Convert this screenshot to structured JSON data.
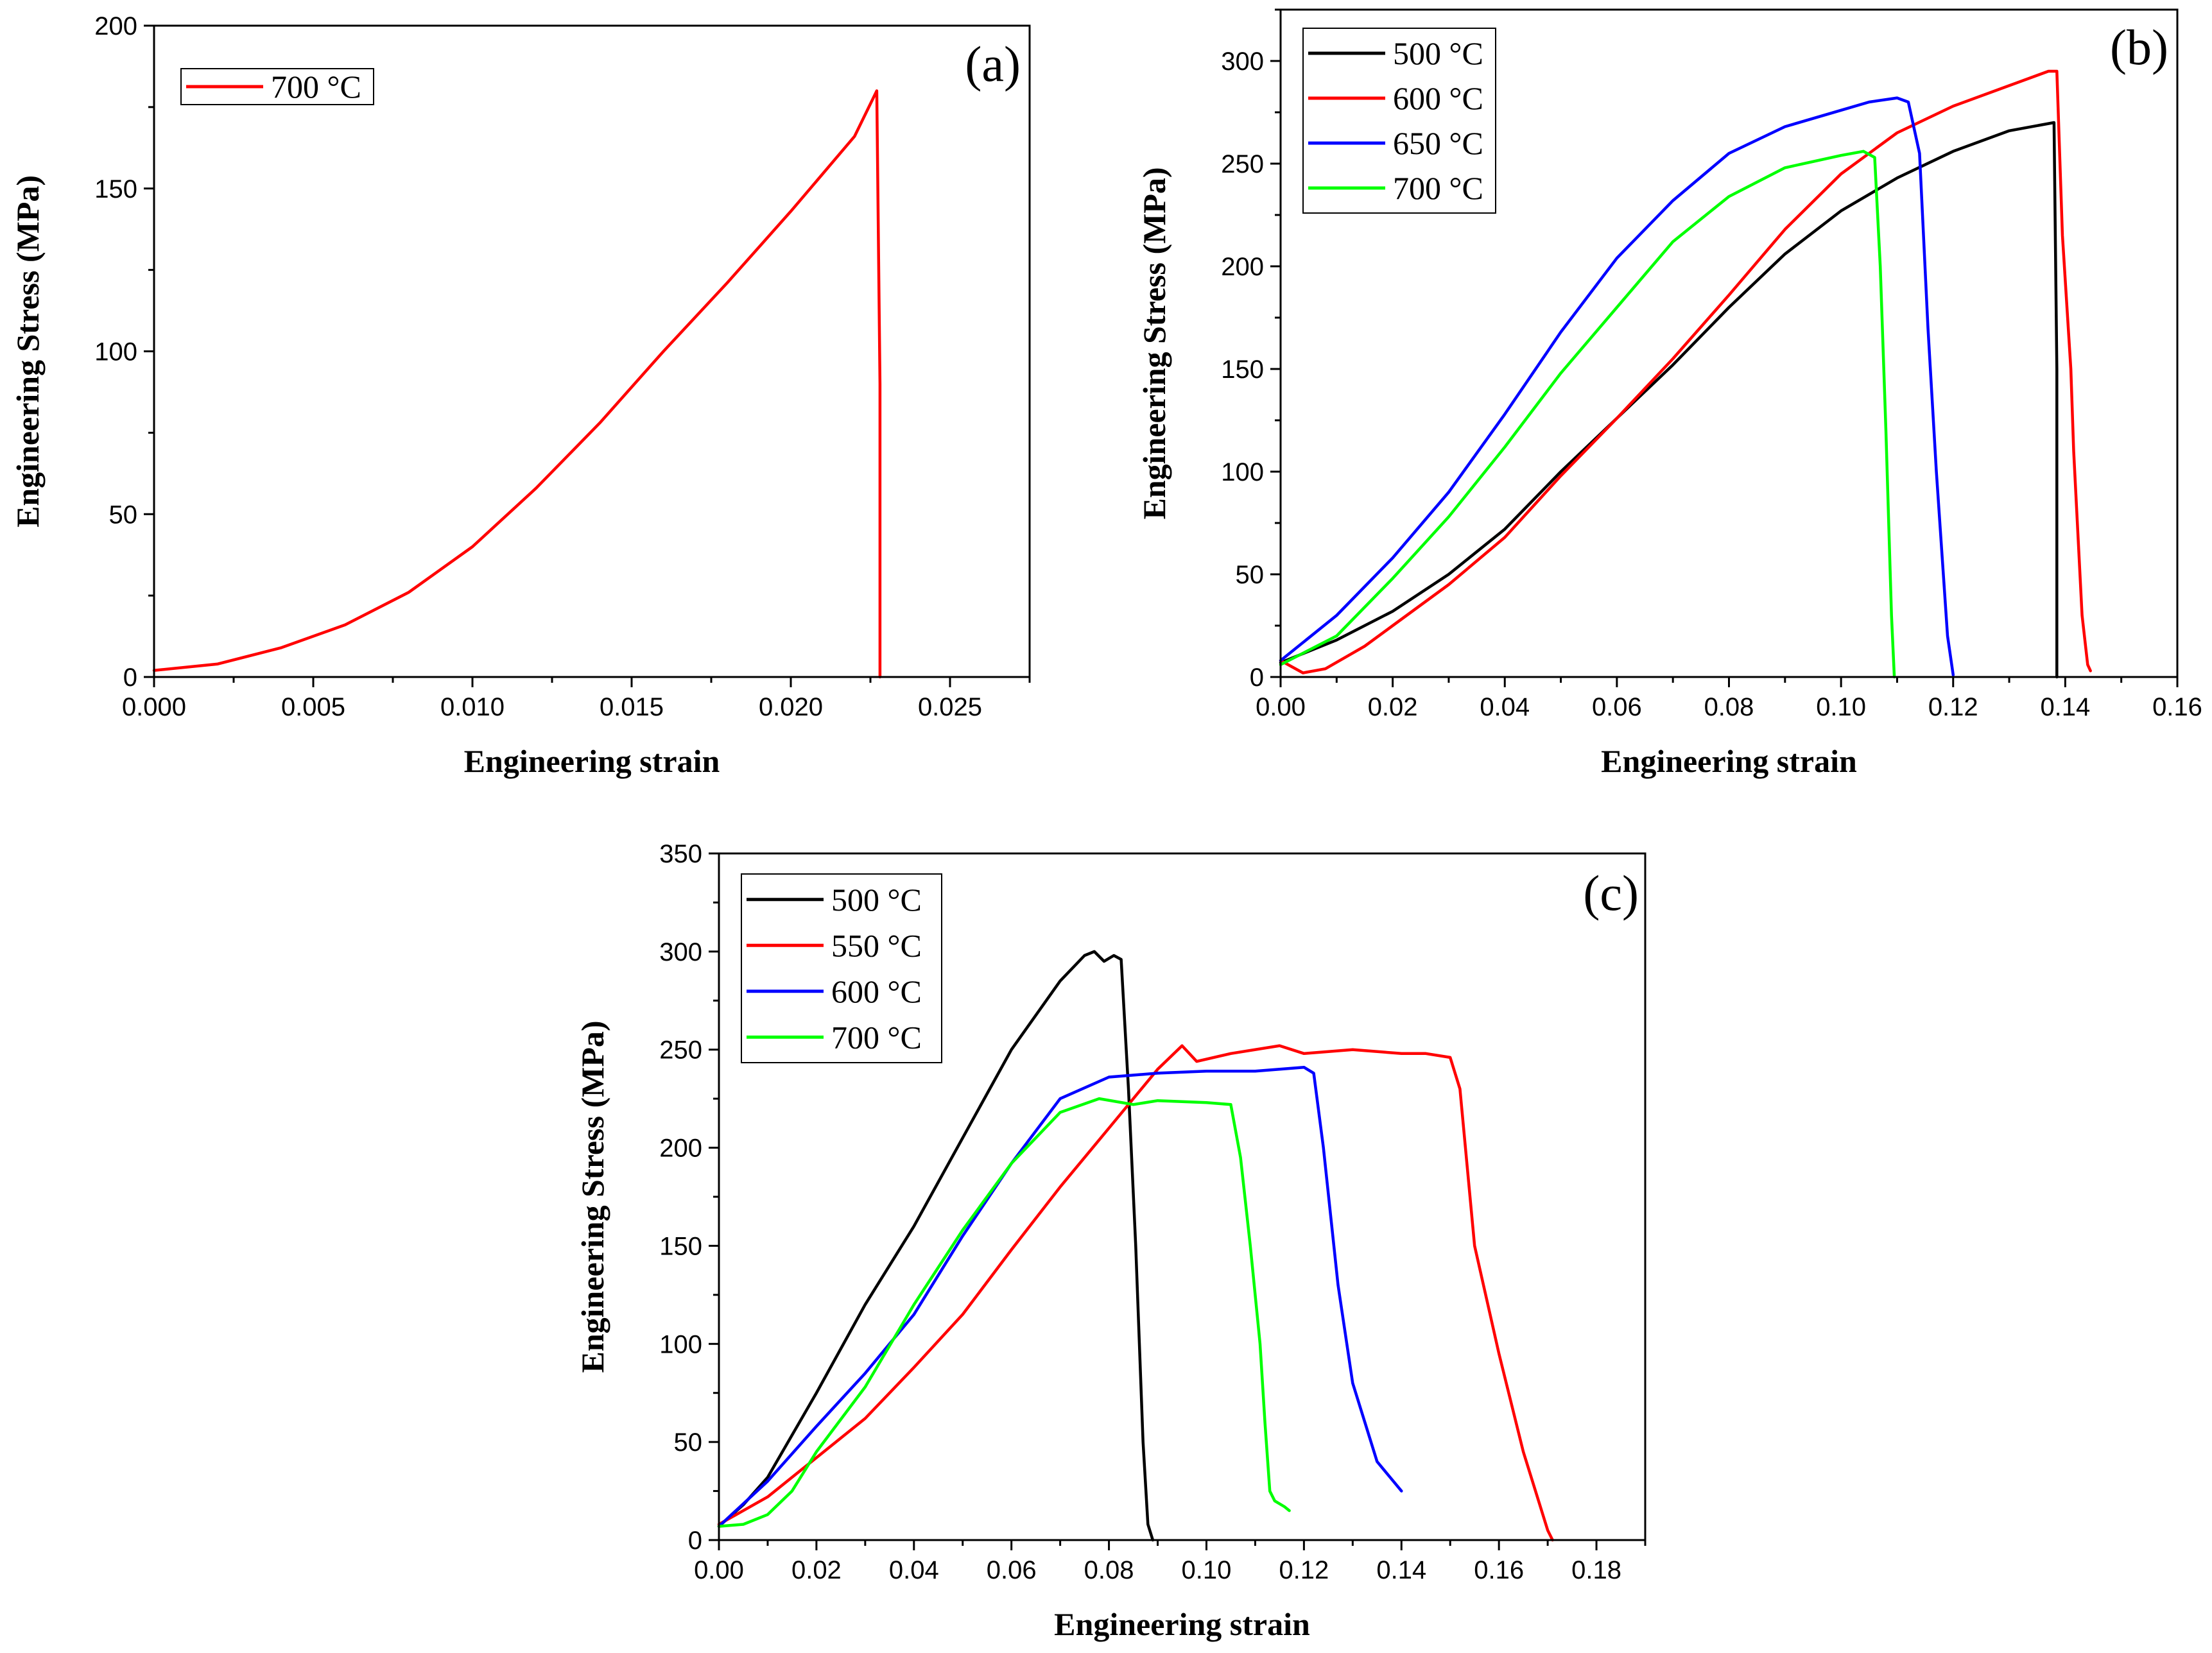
{
  "chart_data": [
    {
      "panel": "(a)",
      "type": "line",
      "xlabel": "Engineering strain",
      "ylabel": "Engineering Stress (MPa)",
      "xlim": [
        0,
        0.0275
      ],
      "ylim": [
        0,
        200
      ],
      "xticks": [
        "0.000",
        "0.005",
        "0.010",
        "0.015",
        "0.020",
        "0.025"
      ],
      "yticks": [
        "0",
        "50",
        "100",
        "150",
        "200"
      ],
      "legend_position": "top-left",
      "series": [
        {
          "name": "700 °C",
          "color": "#ff0000",
          "x": [
            0,
            0.002,
            0.004,
            0.006,
            0.008,
            0.01,
            0.012,
            0.014,
            0.016,
            0.018,
            0.02,
            0.022,
            0.0227,
            0.0228,
            0.0228
          ],
          "y": [
            2,
            4,
            9,
            16,
            26,
            40,
            58,
            78,
            100,
            121,
            143,
            166,
            180,
            90,
            0
          ]
        }
      ]
    },
    {
      "panel": "(b)",
      "type": "line",
      "xlabel": "Engineering strain",
      "ylabel": "Engineering Stress (MPa)",
      "xlim": [
        0,
        0.16
      ],
      "ylim": [
        0,
        325
      ],
      "xticks": [
        "0.00",
        "0.02",
        "0.04",
        "0.06",
        "0.08",
        "0.10",
        "0.12",
        "0.14",
        "0.16"
      ],
      "yticks": [
        "0",
        "50",
        "100",
        "150",
        "200",
        "250",
        "300"
      ],
      "legend_position": "top-left",
      "series": [
        {
          "name": "500 °C",
          "color": "#000000",
          "x": [
            0,
            0.01,
            0.02,
            0.03,
            0.04,
            0.05,
            0.06,
            0.07,
            0.08,
            0.09,
            0.1,
            0.11,
            0.12,
            0.13,
            0.138,
            0.1385,
            0.1385
          ],
          "y": [
            7,
            18,
            32,
            50,
            72,
            100,
            126,
            152,
            180,
            206,
            227,
            243,
            256,
            266,
            270,
            150,
            0
          ]
        },
        {
          "name": "600 °C",
          "color": "#ff0000",
          "x": [
            0,
            0.004,
            0.008,
            0.015,
            0.02,
            0.03,
            0.04,
            0.05,
            0.06,
            0.07,
            0.08,
            0.09,
            0.1,
            0.11,
            0.12,
            0.13,
            0.137,
            0.1385,
            0.1395,
            0.141,
            0.1415,
            0.143,
            0.144,
            0.1445
          ],
          "y": [
            8,
            2,
            4,
            15,
            25,
            45,
            68,
            98,
            126,
            155,
            186,
            218,
            245,
            265,
            278,
            288,
            295,
            295,
            215,
            150,
            110,
            30,
            6,
            3
          ]
        },
        {
          "name": "650 °C",
          "color": "#0000ff",
          "x": [
            0,
            0.01,
            0.02,
            0.03,
            0.04,
            0.05,
            0.06,
            0.07,
            0.08,
            0.09,
            0.1,
            0.105,
            0.11,
            0.112,
            0.114,
            0.1155,
            0.117,
            0.119,
            0.12
          ],
          "y": [
            8,
            30,
            58,
            90,
            128,
            168,
            204,
            232,
            255,
            268,
            276,
            280,
            282,
            280,
            255,
            170,
            100,
            20,
            1
          ]
        },
        {
          "name": "700 °C",
          "color": "#00ff00",
          "x": [
            0,
            0.01,
            0.02,
            0.03,
            0.04,
            0.05,
            0.06,
            0.07,
            0.08,
            0.09,
            0.1,
            0.104,
            0.106,
            0.107,
            0.108,
            0.109,
            0.1095
          ],
          "y": [
            6,
            20,
            48,
            78,
            112,
            148,
            180,
            212,
            234,
            248,
            254,
            256,
            253,
            200,
            120,
            30,
            0
          ]
        }
      ]
    },
    {
      "panel": "(c)",
      "type": "line",
      "xlabel": "Engineering strain",
      "ylabel": "Engineering Stress (MPa)",
      "xlim": [
        0,
        0.19
      ],
      "ylim": [
        0,
        350
      ],
      "xticks": [
        "0.00",
        "0.02",
        "0.04",
        "0.06",
        "0.08",
        "0.10",
        "0.12",
        "0.14",
        "0.16",
        "0.18"
      ],
      "yticks": [
        "0",
        "50",
        "100",
        "150",
        "200",
        "250",
        "300",
        "350"
      ],
      "legend_position": "top-left",
      "series": [
        {
          "name": "500 °C",
          "color": "#000000",
          "x": [
            0,
            0.005,
            0.01,
            0.02,
            0.03,
            0.04,
            0.05,
            0.06,
            0.07,
            0.075,
            0.077,
            0.079,
            0.081,
            0.0825,
            0.084,
            0.0855,
            0.087,
            0.088,
            0.089
          ],
          "y": [
            7,
            18,
            32,
            75,
            120,
            160,
            205,
            250,
            285,
            298,
            300,
            295,
            298,
            296,
            230,
            150,
            50,
            8,
            0
          ]
        },
        {
          "name": "550 °C",
          "color": "#ff0000",
          "x": [
            0,
            0.01,
            0.02,
            0.03,
            0.04,
            0.05,
            0.06,
            0.07,
            0.08,
            0.09,
            0.095,
            0.098,
            0.105,
            0.115,
            0.12,
            0.13,
            0.14,
            0.145,
            0.15,
            0.152,
            0.155,
            0.16,
            0.165,
            0.17,
            0.171
          ],
          "y": [
            8,
            22,
            42,
            62,
            88,
            115,
            148,
            180,
            210,
            240,
            252,
            244,
            248,
            252,
            248,
            250,
            248,
            248,
            246,
            230,
            150,
            95,
            45,
            5,
            0
          ]
        },
        {
          "name": "600 °C",
          "color": "#0000ff",
          "x": [
            0,
            0.01,
            0.02,
            0.03,
            0.04,
            0.05,
            0.06,
            0.07,
            0.08,
            0.09,
            0.1,
            0.11,
            0.12,
            0.122,
            0.124,
            0.127,
            0.13,
            0.135,
            0.14
          ],
          "y": [
            7,
            30,
            58,
            85,
            115,
            155,
            192,
            225,
            236,
            238,
            239,
            239,
            241,
            238,
            200,
            130,
            80,
            40,
            25
          ]
        },
        {
          "name": "700 °C",
          "color": "#00ff00",
          "x": [
            0,
            0.005,
            0.01,
            0.015,
            0.02,
            0.03,
            0.04,
            0.05,
            0.06,
            0.07,
            0.078,
            0.085,
            0.09,
            0.1,
            0.105,
            0.107,
            0.109,
            0.111,
            0.112,
            0.113,
            0.114,
            0.116,
            0.117
          ],
          "y": [
            7,
            8,
            13,
            25,
            45,
            78,
            120,
            158,
            192,
            218,
            225,
            222,
            224,
            223,
            222,
            195,
            150,
            100,
            60,
            25,
            20,
            17,
            15
          ]
        }
      ]
    }
  ]
}
